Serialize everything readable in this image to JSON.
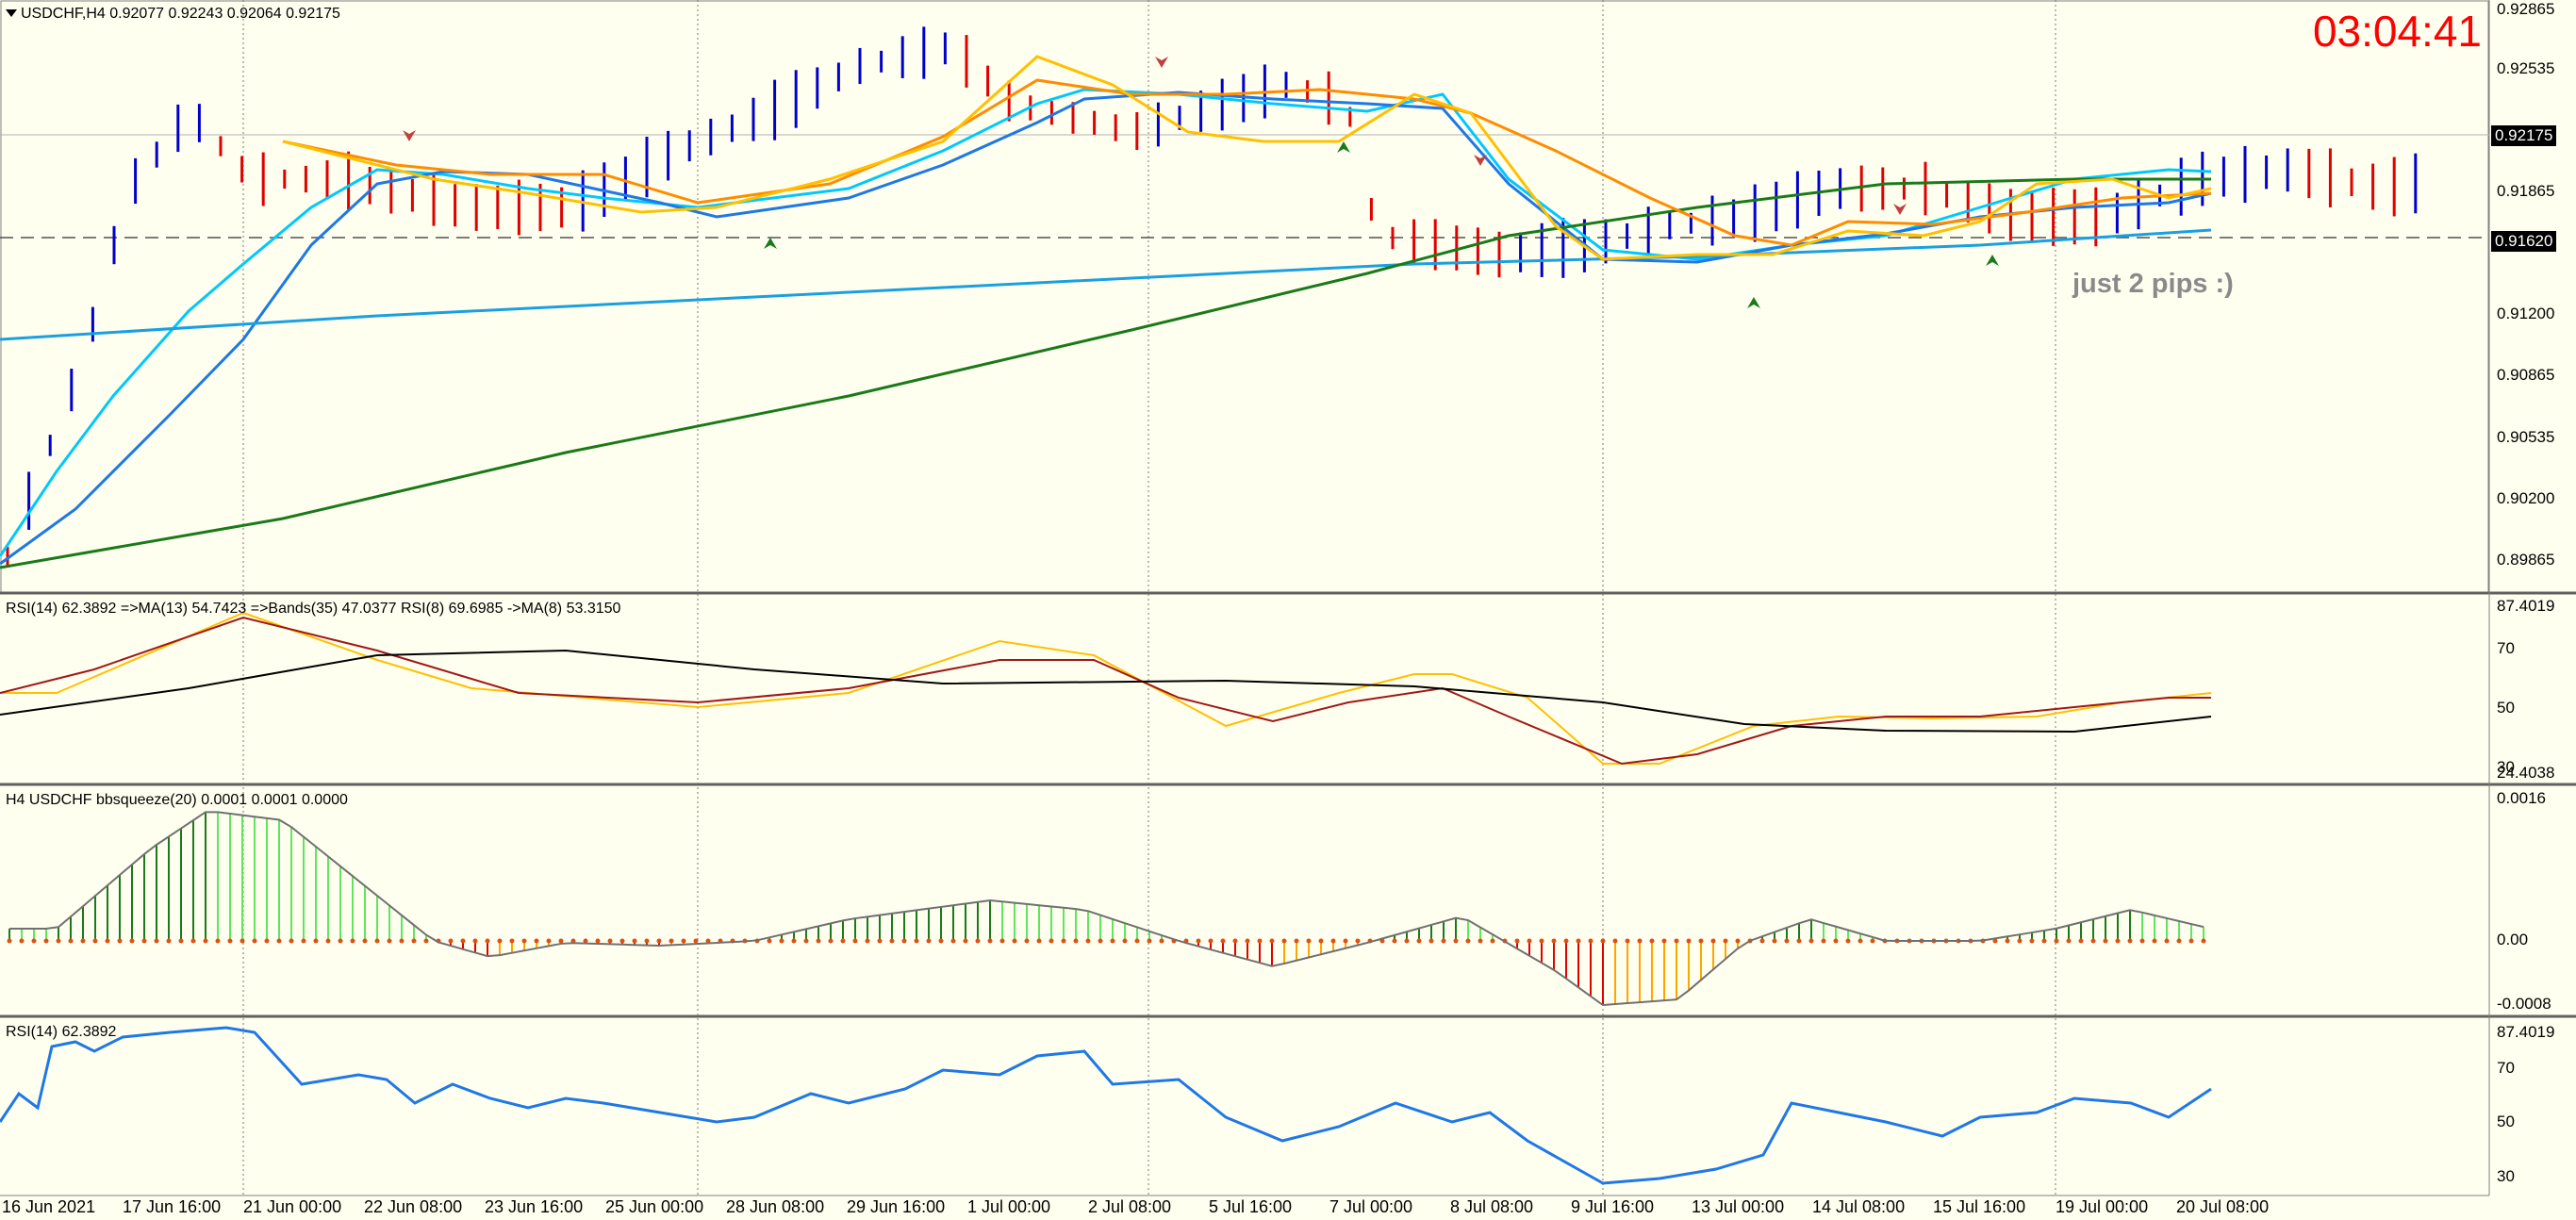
{
  "main": {
    "title": "USDCHF,H4  0.92077 0.92243 0.92064 0.92175",
    "timer": "03:04:41",
    "note": "just 2 pips :)",
    "current_price": "0.92175",
    "line_price": "0.91620",
    "price_labels": [
      "0.92865",
      "0.92535",
      "0.92175",
      "0.91865",
      "0.91620",
      "0.91200",
      "0.90865",
      "0.90535",
      "0.90200",
      "0.89865"
    ],
    "colors": {
      "bull": "#0000cc",
      "bear": "#e00000",
      "ma_fast": "#00c8ff",
      "ma_mid": "#1e78e6",
      "ma_slow_long": "#1aa0e0",
      "ma_200": "#1a7a1a",
      "ma_orange": "#ff8c00",
      "ma_yellow": "#ffc000"
    }
  },
  "rsi_pane": {
    "title": "RSI(14) 62.3892  =>MA(13) 54.7423  =>Bands(35) 47.0377  RSI(8) 69.6985  ->MA(8) 53.3150",
    "labels": [
      "87.4019",
      "70",
      "50",
      "24.4038",
      "30"
    ]
  },
  "bb_pane": {
    "title": "H4 USDCHF bbsqueeze(20) 0.0001 0.0001 0.0000",
    "labels": [
      "0.0016",
      "0.00",
      "-0.0008"
    ]
  },
  "rsi2_pane": {
    "title": "RSI(14) 62.3892",
    "labels": [
      "87.4019",
      "70",
      "50",
      "30"
    ]
  },
  "dates": [
    "16 Jun 2021",
    "17 Jun 16:00",
    "21 Jun 00:00",
    "22 Jun 08:00",
    "23 Jun 16:00",
    "25 Jun 00:00",
    "28 Jun 08:00",
    "29 Jun 16:00",
    "1 Jul 00:00",
    "2 Jul 08:00",
    "5 Jul 16:00",
    "7 Jul 00:00",
    "8 Jul 08:00",
    "9 Jul 16:00",
    "13 Jul 00:00",
    "14 Jul 08:00",
    "15 Jul 16:00",
    "19 Jul 00:00",
    "20 Jul 08:00"
  ]
}
